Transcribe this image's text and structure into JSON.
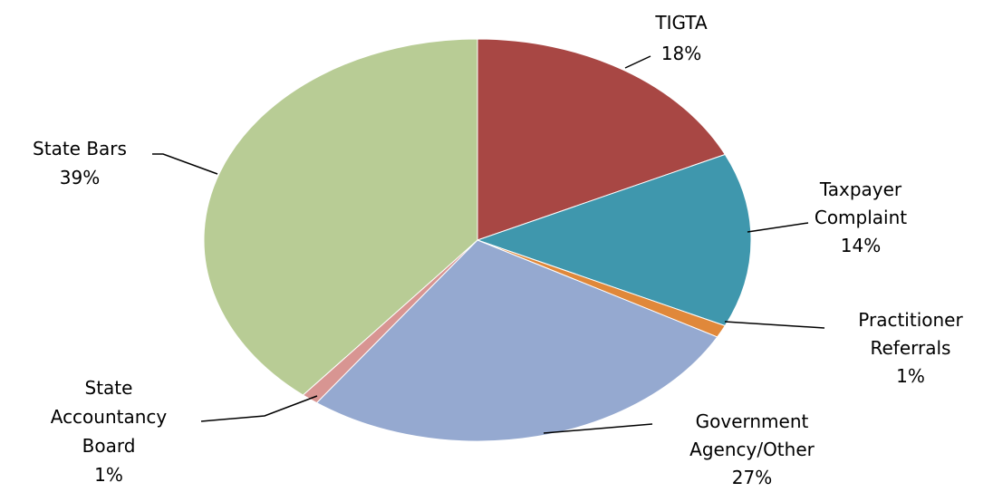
{
  "chart_data": {
    "type": "pie",
    "categories": [
      "TIGTA",
      "Taxpayer Complaint",
      "Practitioner Referrals",
      "Government Agency/Other",
      "State Accountancy Board",
      "State Bars"
    ],
    "values": [
      18,
      14,
      1,
      27,
      1,
      39
    ],
    "value_labels": [
      "18%",
      "14%",
      "1%",
      "27%",
      "1%",
      "39%"
    ],
    "colors": [
      "#a84744",
      "#3f97ad",
      "#e0883a",
      "#95a9d0",
      "#d89592",
      "#b8cc95"
    ]
  }
}
